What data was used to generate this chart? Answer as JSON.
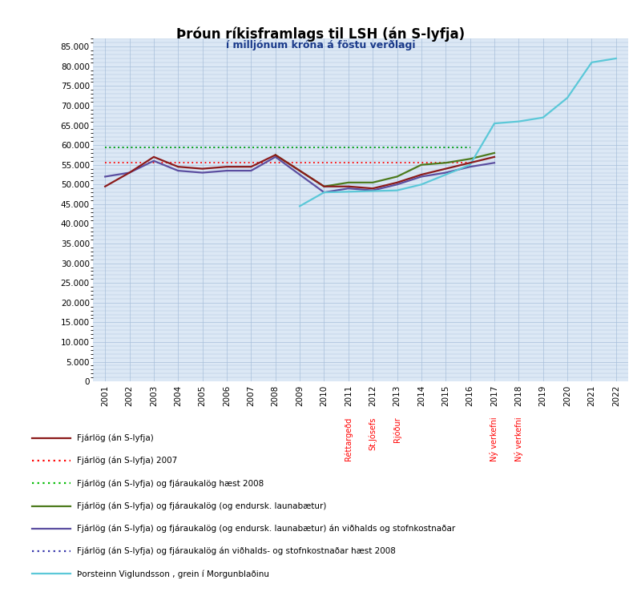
{
  "title": "Þróun ríkisframlags til LSH (án S-lyfja)",
  "subtitle": "í milljónum króna á föstu verðlagi",
  "years": [
    2001,
    2002,
    2003,
    2004,
    2005,
    2006,
    2007,
    2008,
    2009,
    2010,
    2011,
    2012,
    2013,
    2014,
    2015,
    2016,
    2017,
    2018,
    2019,
    2020,
    2021,
    2022
  ],
  "fjarlög": [
    49500,
    53000,
    57000,
    54500,
    54000,
    54500,
    54500,
    57500,
    null,
    49500,
    49500,
    49000,
    50500,
    52500,
    54000,
    55500,
    57000,
    null,
    null,
    null,
    null,
    null
  ],
  "fjarlög_2007": [
    55500,
    55500,
    55500,
    55500,
    55500,
    55500,
    55500,
    55500,
    55500,
    55500,
    55500,
    55500,
    55500,
    55500,
    55500,
    55500,
    null,
    null,
    null,
    null,
    null,
    null
  ],
  "fjarlög_hæst": [
    59500,
    59500,
    59500,
    59500,
    59500,
    59500,
    59500,
    59500,
    59500,
    59500,
    59500,
    59500,
    59500,
    59500,
    59500,
    59500,
    null,
    null,
    null,
    null,
    null,
    null
  ],
  "fjarlög_endursk": [
    null,
    null,
    null,
    null,
    null,
    null,
    null,
    57500,
    null,
    49500,
    50500,
    50500,
    52000,
    55000,
    55500,
    56500,
    58000,
    null,
    null,
    null,
    null,
    null
  ],
  "fjarlög_endursk_an": [
    52000,
    53000,
    56000,
    53500,
    53000,
    53500,
    53500,
    57000,
    null,
    48000,
    49000,
    48500,
    50000,
    52000,
    53000,
    54500,
    55500,
    null,
    null,
    null,
    null,
    null
  ],
  "fjarlög_an_vidhalds": [
    59500,
    59500,
    59500,
    59500,
    59500,
    59500,
    59500,
    59500,
    59500,
    59500,
    59500,
    59500,
    59500,
    59500,
    59500,
    59500,
    null,
    null,
    null,
    null,
    null,
    null
  ],
  "thorsteinn": [
    null,
    null,
    null,
    null,
    null,
    null,
    null,
    null,
    44500,
    48000,
    null,
    null,
    48500,
    50000,
    52500,
    55000,
    65500,
    66000,
    67000,
    72000,
    81000,
    82000
  ],
  "line1_color": "#8B1A1A",
  "line2_color": "#FF0000",
  "line3_color": "#00BB00",
  "line4_color": "#4C7A1C",
  "line5_color": "#5B4EA0",
  "line6_color": "#3333AA",
  "line7_color": "#5BC8D8",
  "vertical_labels": [
    {
      "x": 2011,
      "label": "Réttargeðd",
      "color": "#FF0000"
    },
    {
      "x": 2012,
      "label": "St.Jósefs",
      "color": "#FF0000"
    },
    {
      "x": 2013,
      "label": "Rjóður",
      "color": "#FF0000"
    },
    {
      "x": 2017,
      "label": "Ný verkefni",
      "color": "#FF0000"
    },
    {
      "x": 2018,
      "label": "Ný verkefni",
      "color": "#FF0000"
    }
  ],
  "legend_entries": [
    {
      "label": "Fjárlög (án S-lyfja)",
      "color": "#8B1A1A",
      "linestyle": "solid"
    },
    {
      "label": "Fjárlög (án S-lyfja) 2007",
      "color": "#FF0000",
      "linestyle": "dotted"
    },
    {
      "label": "Fjárlög (án S-lyfja) og fjáraukalög hæst 2008",
      "color": "#00BB00",
      "linestyle": "dotted"
    },
    {
      "label": "Fjárlög (án S-lyfja) og fjáraukalög (og endursk. launabætur)",
      "color": "#4C7A1C",
      "linestyle": "solid"
    },
    {
      "label": "Fjárlög (án S-lyfja) og fjáraukalög (og endursk. launabætur) án viðhalds og stofnkostnaðar",
      "color": "#5B4EA0",
      "linestyle": "solid"
    },
    {
      "label": "Fjárlög (án S-lyfja) og fjáraukalög án viðhalds- og stofnkostnaðar hæst 2008",
      "color": "#3333AA",
      "linestyle": "dotted"
    },
    {
      "label": "Þorsteinn Viglundsson , grein í Morgunblaðinu",
      "color": "#5BC8D8",
      "linestyle": "solid"
    }
  ],
  "ylim": [
    0,
    87000
  ],
  "yticks": [
    0,
    5000,
    10000,
    15000,
    20000,
    25000,
    30000,
    35000,
    40000,
    45000,
    50000,
    55000,
    60000,
    65000,
    70000,
    75000,
    80000,
    85000
  ]
}
